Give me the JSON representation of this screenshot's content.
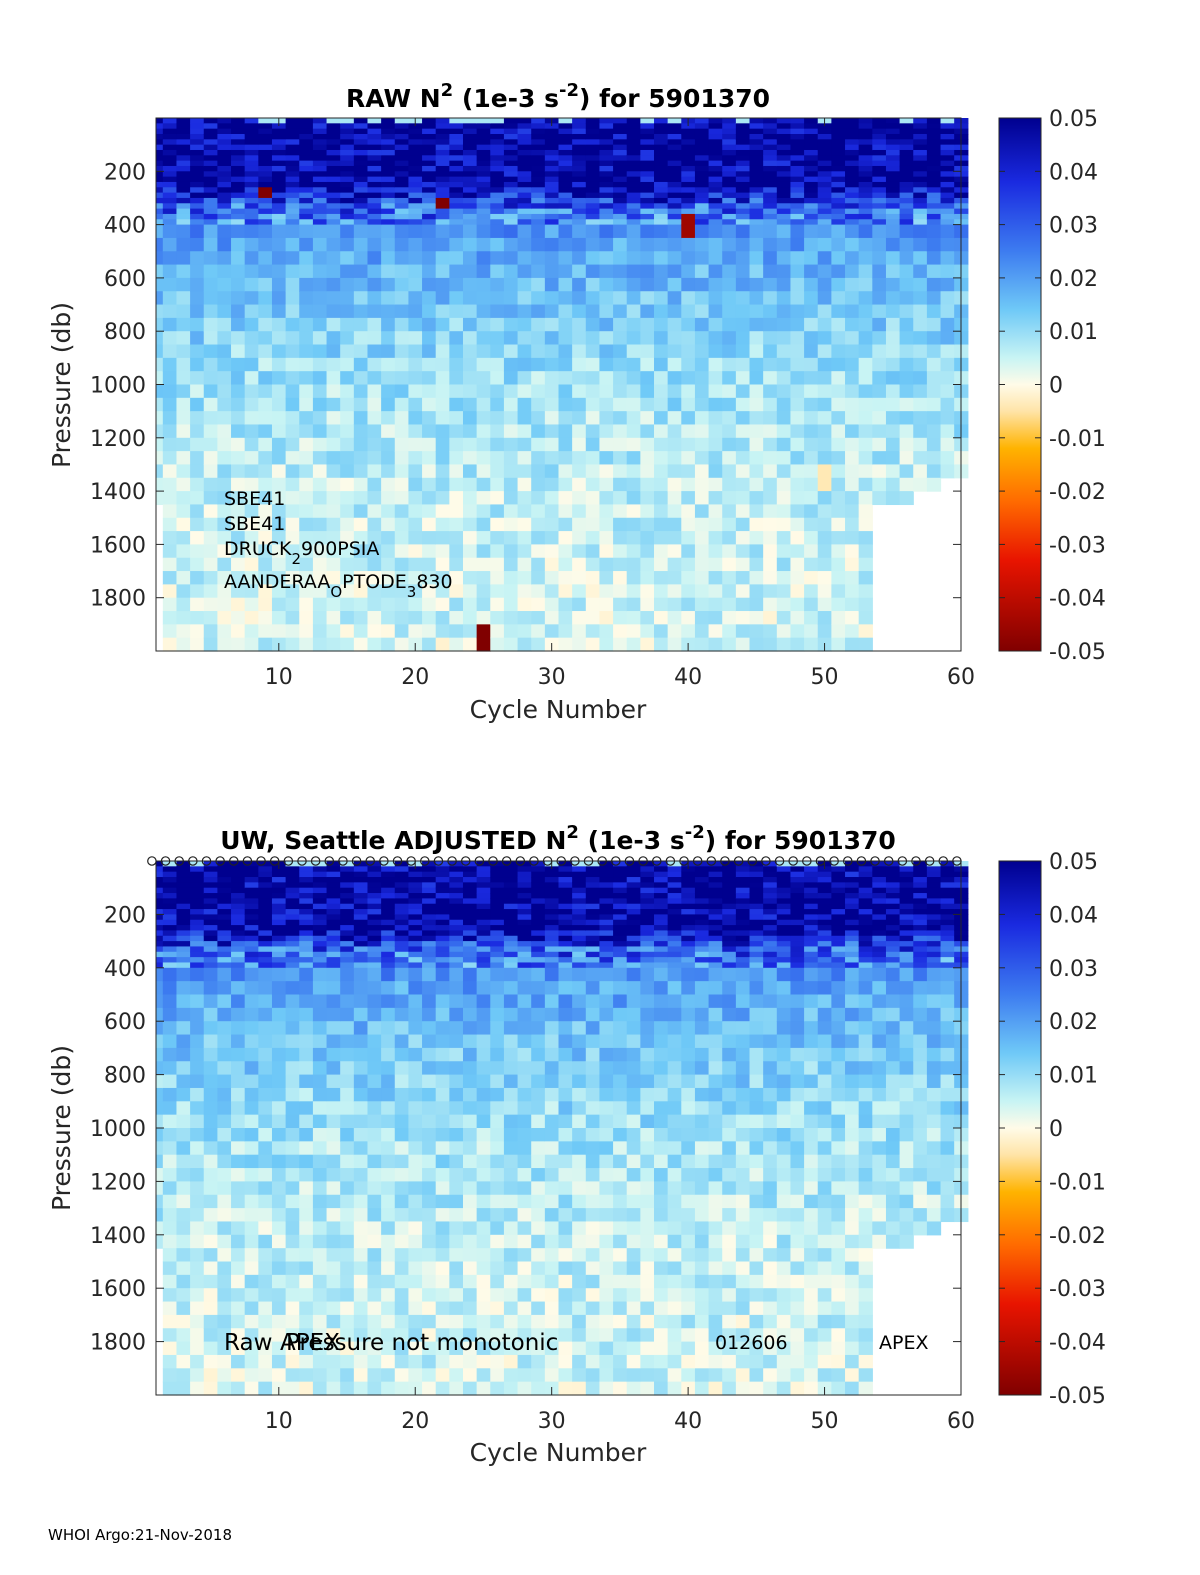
{
  "footer": "WHOI Argo:21-Nov-2018",
  "colorbar": {
    "ticks": [
      "0.05",
      "0.04",
      "0.03",
      "0.02",
      "0.01",
      "0",
      "-0.01",
      "-0.02",
      "-0.03",
      "-0.04",
      "-0.05"
    ],
    "range": [
      -0.05,
      0.05
    ]
  },
  "chart_data": [
    {
      "type": "heatmap",
      "title": {
        "main": "RAW N",
        "sup": "2",
        "unit_pre": " (1e-3 s",
        "unit_sup": "-2",
        "unit_post": ") for 5901370"
      },
      "xlabel": "Cycle Number",
      "ylabel": "Pressure (db)",
      "xlim": [
        1,
        60
      ],
      "ylim": [
        2000,
        0
      ],
      "xticks": [
        "10",
        "20",
        "30",
        "40",
        "50",
        "60"
      ],
      "xtick_values": [
        10,
        20,
        30,
        40,
        50,
        60
      ],
      "yticks": [
        "200",
        "400",
        "600",
        "800",
        "1000",
        "1200",
        "1400",
        "1600",
        "1800"
      ],
      "ytick_values": [
        200,
        400,
        600,
        800,
        1000,
        1200,
        1400,
        1600,
        1800
      ],
      "color_range": [
        -0.05,
        0.05
      ],
      "value_profile": [
        {
          "pressure": 0,
          "value": 0.05
        },
        {
          "pressure": 250,
          "value": 0.05
        },
        {
          "pressure": 330,
          "value": 0.03
        },
        {
          "pressure": 450,
          "value": 0.02
        },
        {
          "pressure": 700,
          "value": 0.014
        },
        {
          "pressure": 1000,
          "value": 0.009
        },
        {
          "pressure": 1400,
          "value": 0.006
        },
        {
          "pressure": 2000,
          "value": 0.004
        }
      ],
      "anomalies": [
        {
          "cycle": 9,
          "pressure": 280,
          "value": -0.05
        },
        {
          "cycle": 22,
          "pressure": 320,
          "value": -0.05
        },
        {
          "cycle": 40,
          "pressure": 380,
          "value": -0.045
        },
        {
          "cycle": 25,
          "pressure": 1930,
          "value": -0.05
        },
        {
          "cycle": 50,
          "pressure": 1360,
          "value": -0.004
        }
      ],
      "annotations": {
        "sensor1": "SBE41",
        "sensor2": "SBE41",
        "sensor3_a": "DRUCK",
        "sensor3_sub": "2",
        "sensor3_b": "900PSIA",
        "sensor4_a": "AANDERAA",
        "sensor4_sub1": "O",
        "sensor4_b": "PTODE",
        "sensor4_sub2": "3",
        "sensor4_c": "830"
      }
    },
    {
      "type": "heatmap",
      "title": {
        "main": "UW, Seattle  ADJUSTED N",
        "sup": "2",
        "unit_pre": " (1e-3 s",
        "unit_sup": "-2",
        "unit_post": ") for 5901370"
      },
      "xlabel": "Cycle Number",
      "ylabel": "Pressure (db)",
      "xlim": [
        1,
        60
      ],
      "ylim": [
        2000,
        0
      ],
      "xticks": [
        "10",
        "20",
        "30",
        "40",
        "50",
        "60"
      ],
      "xtick_values": [
        10,
        20,
        30,
        40,
        50,
        60
      ],
      "yticks": [
        "200",
        "400",
        "600",
        "800",
        "1000",
        "1200",
        "1400",
        "1600",
        "1800"
      ],
      "ytick_values": [
        200,
        400,
        600,
        800,
        1000,
        1200,
        1400,
        1600,
        1800
      ],
      "color_range": [
        -0.05,
        0.05
      ],
      "markers": "circles along surface (pressure 0) for each cycle",
      "annotations": {
        "raw": "Raw",
        "apex_overlap": "APEX",
        "pressure_note": "Pressure not monotonic",
        "serial": "012606",
        "float_type": "APEX"
      }
    }
  ]
}
